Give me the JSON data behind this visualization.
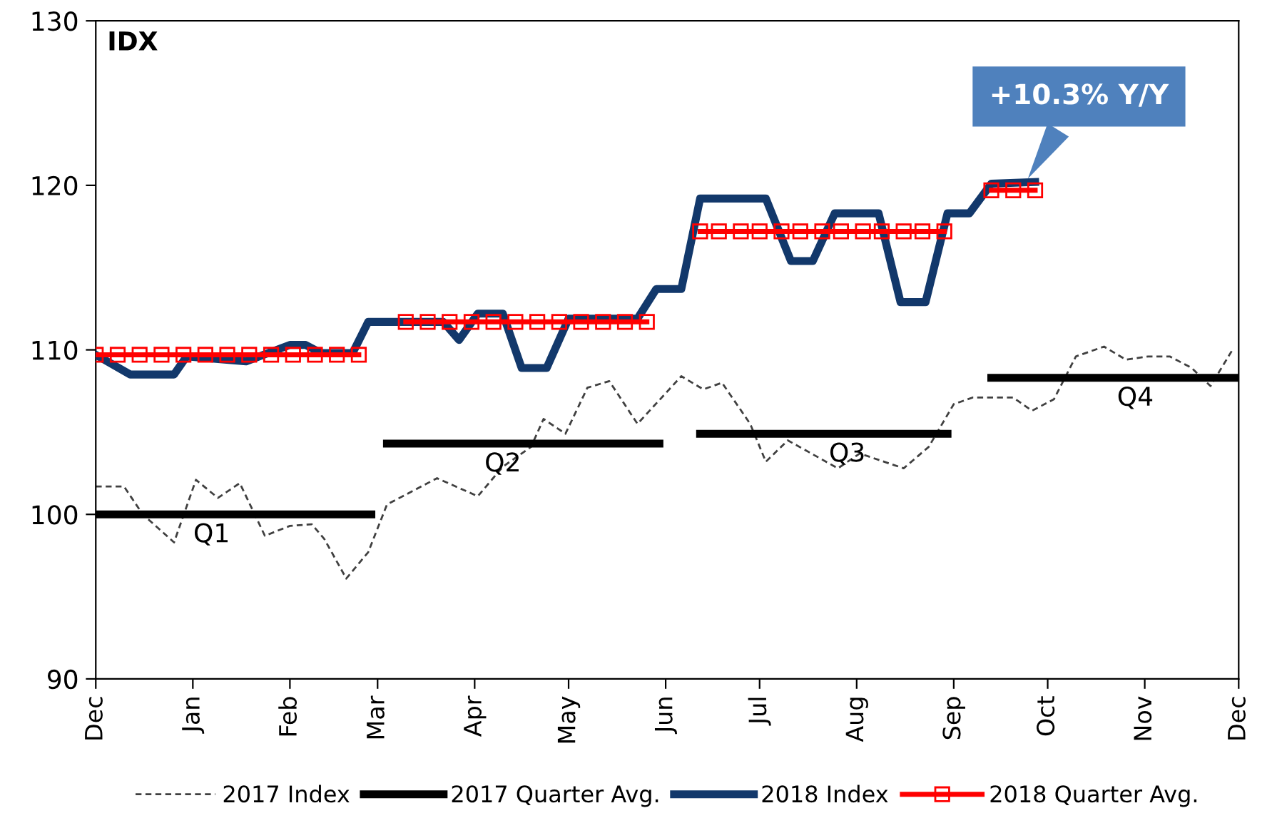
{
  "chart_data": {
    "type": "line",
    "ylabel": "IDX",
    "xlim": [
      "2017-12-01",
      "2018-12-01"
    ],
    "xticks": [
      {
        "value": "2017-12-01",
        "label": "Dec"
      },
      {
        "value": "2018-01-01",
        "label": "Jan"
      },
      {
        "value": "2018-02-01",
        "label": "Feb"
      },
      {
        "value": "2018-03-01",
        "label": "Mar"
      },
      {
        "value": "2018-04-01",
        "label": "Apr"
      },
      {
        "value": "2018-05-01",
        "label": "May"
      },
      {
        "value": "2018-06-01",
        "label": "Jun"
      },
      {
        "value": "2018-07-01",
        "label": "Jul"
      },
      {
        "value": "2018-08-01",
        "label": "Aug"
      },
      {
        "value": "2018-09-01",
        "label": "Sep"
      },
      {
        "value": "2018-10-01",
        "label": "Oct"
      },
      {
        "value": "2018-11-01",
        "label": "Nov"
      },
      {
        "value": "2018-12-01",
        "label": "Dec"
      }
    ],
    "ylim": [
      90,
      130
    ],
    "yticks": [
      90,
      100,
      110,
      120,
      130
    ],
    "grid": false,
    "legend": "bottom",
    "series": [
      {
        "name": "2017 Index",
        "color": "#404040",
        "line_style": "dashed",
        "marker": "none",
        "x": [
          "2017-12-01",
          "2017-12-10",
          "2017-12-16",
          "2017-12-26",
          "2018-01-02",
          "2018-01-09",
          "2018-01-16",
          "2018-01-24",
          "2018-02-01",
          "2018-02-08",
          "2018-02-12",
          "2018-02-19",
          "2018-02-26",
          "2018-03-04",
          "2018-03-20",
          "2018-04-02",
          "2018-04-10",
          "2018-04-19",
          "2018-04-23",
          "2018-04-30",
          "2018-05-07",
          "2018-05-14",
          "2018-05-23",
          "2018-06-06",
          "2018-06-13",
          "2018-06-19",
          "2018-06-28",
          "2018-07-03",
          "2018-07-10",
          "2018-07-26",
          "2018-08-02",
          "2018-08-16",
          "2018-08-24",
          "2018-09-01",
          "2018-09-07",
          "2018-09-20",
          "2018-09-26",
          "2018-10-03",
          "2018-10-10",
          "2018-10-19",
          "2018-10-26",
          "2018-11-02",
          "2018-11-09",
          "2018-11-16",
          "2018-11-22",
          "2018-11-29"
        ],
        "values": [
          101.7,
          101.7,
          100,
          98.3,
          102.1,
          101.0,
          101.9,
          98.7,
          99.3,
          99.4,
          98.5,
          96.1,
          97.7,
          100.6,
          102.2,
          101.1,
          102.9,
          104.1,
          105.8,
          104.9,
          107.7,
          108.1,
          105.5,
          108.4,
          107.6,
          108,
          105.5,
          103.2,
          104.5,
          102.8,
          103.7,
          102.8,
          104.1,
          106.7,
          107.1,
          107.1,
          106.3,
          107.0,
          109.6,
          110.2,
          109.4,
          109.6,
          109.6,
          108.9,
          107.8,
          110
        ]
      },
      {
        "name": "2017 Quarter Avg.",
        "color": "#000000",
        "line_style": "solid",
        "marker": "none",
        "x": [
          "2017-12-01",
          "2018-02-27",
          "2018-03-01",
          "2018-03-04",
          "2018-05-30",
          "2018-06-04",
          "2018-06-12",
          "2018-08-30",
          "2018-09-07",
          "2018-09-13",
          "2018-11-30"
        ],
        "values": [
          100,
          100,
          null,
          104.3,
          104.3,
          null,
          104.9,
          104.9,
          null,
          108.3,
          108.3
        ]
      },
      {
        "name": "2018 Index",
        "color": "#12386b",
        "line_style": "solid",
        "marker": "none",
        "x": [
          "2017-12-01",
          "2017-12-12",
          "2017-12-26",
          "2017-12-30",
          "2018-01-18",
          "2018-02-01",
          "2018-02-06",
          "2018-02-11",
          "2018-02-21",
          "2018-02-26",
          "2018-03-22",
          "2018-03-27",
          "2018-04-02",
          "2018-04-10",
          "2018-04-16",
          "2018-04-24",
          "2018-05-01",
          "2018-05-23",
          "2018-05-29",
          "2018-06-06",
          "2018-06-12",
          "2018-07-03",
          "2018-07-11",
          "2018-07-18",
          "2018-07-25",
          "2018-08-08",
          "2018-08-15",
          "2018-08-23",
          "2018-08-30",
          "2018-09-06",
          "2018-09-13",
          "2018-09-27"
        ],
        "values": [
          109.7,
          108.5,
          108.5,
          109.6,
          109.3,
          110.3,
          110.3,
          109.8,
          109.8,
          111.7,
          111.7,
          110.6,
          112.2,
          112.2,
          108.9,
          108.9,
          111.9,
          111.9,
          113.7,
          113.7,
          119.2,
          119.2,
          115.4,
          115.4,
          118.3,
          118.3,
          112.9,
          112.9,
          118.3,
          118.3,
          120.1,
          120.2
        ]
      },
      {
        "name": "2018 Quarter Avg.",
        "color": "#ff0000",
        "line_style": "solid",
        "marker": "square",
        "x": [
          "2017-12-01",
          "2017-12-08",
          "2017-12-15",
          "2017-12-22",
          "2017-12-29",
          "2018-01-05",
          "2018-01-12",
          "2018-01-19",
          "2018-01-26",
          "2018-02-02",
          "2018-02-09",
          "2018-02-16",
          "2018-02-23",
          "2018-03-03",
          "2018-03-10",
          "2018-03-17",
          "2018-03-24",
          "2018-03-31",
          "2018-04-07",
          "2018-04-14",
          "2018-04-21",
          "2018-04-28",
          "2018-05-05",
          "2018-05-12",
          "2018-05-19",
          "2018-05-26",
          "2018-06-04",
          "2018-06-12",
          "2018-06-18",
          "2018-06-25",
          "2018-07-01",
          "2018-07-08",
          "2018-07-14",
          "2018-07-21",
          "2018-07-27",
          "2018-08-03",
          "2018-08-09",
          "2018-08-16",
          "2018-08-22",
          "2018-08-29",
          "2018-09-06",
          "2018-09-13",
          "2018-09-20",
          "2018-09-27"
        ],
        "values": [
          109.7,
          109.7,
          109.7,
          109.7,
          109.7,
          109.7,
          109.7,
          109.7,
          109.7,
          109.7,
          109.7,
          109.7,
          109.7,
          null,
          111.7,
          111.7,
          111.7,
          111.7,
          111.7,
          111.7,
          111.7,
          111.7,
          111.7,
          111.7,
          111.7,
          111.7,
          null,
          117.2,
          117.2,
          117.2,
          117.2,
          117.2,
          117.2,
          117.2,
          117.2,
          117.2,
          117.2,
          117.2,
          117.2,
          117.2,
          null,
          119.7,
          119.7,
          119.7
        ]
      }
    ],
    "annotations": [
      {
        "text": "+10.3% Y/Y",
        "x": "2018-09-24",
        "y": 120.2
      },
      {
        "text": "Q1",
        "x": "2018-01-07",
        "y": 100
      },
      {
        "text": "Q2",
        "x": "2018-04-10",
        "y": 104.3
      },
      {
        "text": "Q3",
        "x": "2018-07-29",
        "y": 104.9
      },
      {
        "text": "Q4",
        "x": "2018-10-29",
        "y": 108.3
      }
    ]
  }
}
